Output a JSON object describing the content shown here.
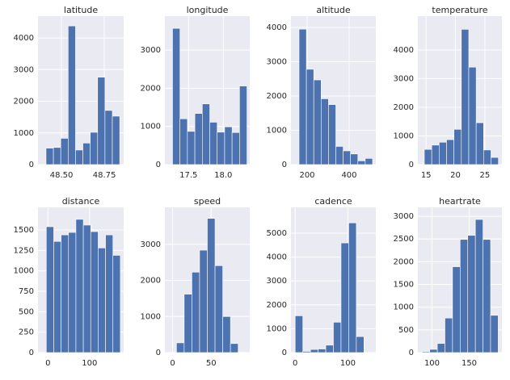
{
  "chart_data": [
    {
      "type": "histogram",
      "title": "latitude",
      "color": "#4c72b0",
      "grid": true,
      "bins": [
        48.41,
        48.453,
        48.496,
        48.539,
        48.582,
        48.625,
        48.668,
        48.711,
        48.754,
        48.797,
        48.84
      ],
      "counts": [
        520,
        540,
        830,
        4380,
        460,
        680,
        1020,
        2760,
        1710,
        1530
      ],
      "xlim": [
        48.363,
        48.863
      ],
      "ylim": [
        0,
        4690
      ],
      "xticks": [
        {
          "value": 48.5,
          "label": "48.50"
        },
        {
          "value": 48.75,
          "label": "48.75"
        }
      ],
      "yticks": [
        0,
        1000,
        2000,
        3000,
        4000
      ]
    },
    {
      "type": "histogram",
      "title": "longitude",
      "color": "#4c72b0",
      "grid": true,
      "bins": [
        17.27,
        17.377,
        17.484,
        17.591,
        17.698,
        17.805,
        17.912,
        18.019,
        18.126,
        18.233,
        18.34
      ],
      "counts": [
        3570,
        1200,
        870,
        1340,
        1590,
        1110,
        850,
        990,
        840,
        2060
      ],
      "xlim": [
        17.16,
        18.38
      ],
      "ylim": [
        0,
        3890
      ],
      "xticks": [
        17.5,
        {
          "value": 18.0,
          "label": "18.0"
        }
      ],
      "yticks": [
        0,
        1000,
        2000,
        3000
      ]
    },
    {
      "type": "histogram",
      "title": "altitude",
      "color": "#4c72b0",
      "grid": true,
      "bins": [
        161.5,
        196.5,
        231.5,
        266.5,
        301.5,
        336.5,
        371.5,
        406.5,
        441.5,
        476.5,
        511.5
      ],
      "counts": [
        3950,
        2780,
        2470,
        1920,
        1750,
        530,
        400,
        310,
        110,
        180
      ],
      "xlim": [
        123,
        527
      ],
      "ylim": [
        0,
        4330
      ],
      "xticks": [
        200,
        400
      ],
      "yticks": [
        0,
        1000,
        2000,
        3000,
        4000
      ]
    },
    {
      "type": "histogram",
      "title": "temperature",
      "color": "#4c72b0",
      "grid": true,
      "bins": [
        14.7,
        15.96,
        17.22,
        18.48,
        19.74,
        21.0,
        22.26,
        23.52,
        24.78,
        26.04,
        27.3
      ],
      "counts": [
        530,
        680,
        780,
        870,
        1230,
        4720,
        3400,
        1460,
        510,
        250
      ],
      "xlim": [
        13.6,
        27.9
      ],
      "ylim": [
        0,
        5180
      ],
      "xticks": [
        15,
        20,
        25
      ],
      "yticks": [
        0,
        1000,
        2000,
        3000,
        4000
      ]
    },
    {
      "type": "histogram",
      "title": "distance",
      "color": "#4c72b0",
      "grid": true,
      "bins": [
        -4,
        13.8,
        31.6,
        49.4,
        67.2,
        85,
        102.8,
        120.6,
        138.4,
        156.2,
        174
      ],
      "counts": [
        1540,
        1360,
        1440,
        1470,
        1630,
        1560,
        1480,
        1280,
        1440,
        1190
      ],
      "xlim": [
        -24,
        182
      ],
      "ylim": [
        0,
        1777
      ],
      "xticks": [
        0,
        100
      ],
      "yticks": [
        0,
        250,
        500,
        750,
        1000,
        1250,
        1500
      ]
    },
    {
      "type": "histogram",
      "title": "speed",
      "color": "#4c72b0",
      "grid": true,
      "bins": [
        -5,
        5,
        15,
        25,
        35,
        45,
        55,
        65,
        75,
        85,
        95
      ],
      "counts": [
        5,
        270,
        1620,
        2230,
        2840,
        3720,
        2410,
        1000,
        250,
        10
      ],
      "xlim": [
        -10,
        100
      ],
      "ylim": [
        0,
        4027
      ],
      "xticks": [
        0,
        50
      ],
      "yticks": [
        0,
        1000,
        2000,
        3000
      ]
    },
    {
      "type": "histogram",
      "title": "cadence",
      "color": "#4c72b0",
      "grid": true,
      "bins": [
        0,
        14.5,
        29,
        43.5,
        58,
        72.5,
        87,
        101.5,
        116,
        130.5,
        145
      ],
      "counts": [
        1540,
        50,
        130,
        150,
        310,
        1270,
        4590,
        5430,
        670,
        0
      ],
      "xlim": [
        -8,
        153
      ],
      "ylim": [
        0,
        6080
      ],
      "xticks": [
        0,
        100
      ],
      "yticks": [
        0,
        1000,
        2000,
        3000,
        4000,
        5000
      ]
    },
    {
      "type": "histogram",
      "title": "heartrate",
      "color": "#4c72b0",
      "grid": true,
      "bins": [
        86.7,
        96.93,
        107.16,
        117.39,
        127.62,
        137.85,
        148.08,
        158.31,
        168.54,
        178.77,
        189
      ],
      "counts": [
        20,
        70,
        200,
        760,
        1890,
        2490,
        2580,
        2930,
        2490,
        820
      ],
      "xlim": [
        81,
        194
      ],
      "ylim": [
        0,
        3197
      ],
      "xticks": [
        100,
        150
      ],
      "yticks": [
        0,
        500,
        1000,
        1500,
        2000,
        2500,
        3000
      ]
    }
  ]
}
